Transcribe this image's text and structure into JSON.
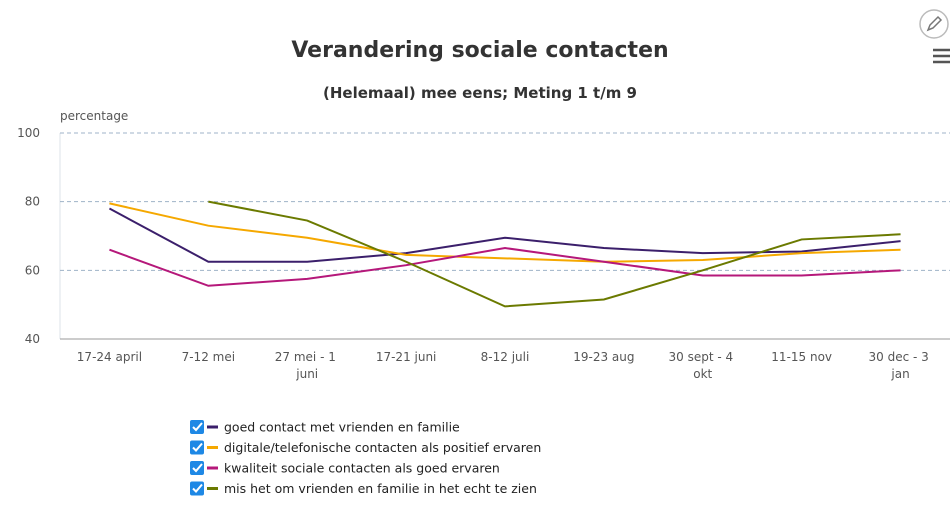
{
  "chart_data": {
    "type": "line",
    "title": "Verandering sociale contacten",
    "subtitle": "(Helemaal) mee eens; Meting 1 t/m 9",
    "y_label": "percentage",
    "categories": [
      "17-24 april",
      "7-12 mei",
      "27 mei - 1 juni",
      "17-21 juni",
      "8-12 juli",
      "19-23 aug",
      "30 sept - 4 okt",
      "11-15 nov",
      "30 dec - 3 jan"
    ],
    "series": [
      {
        "name": "goed contact met vrienden en familie",
        "color": "#3b1f6b",
        "values": [
          78,
          62.5,
          62.5,
          65,
          69.5,
          66.5,
          65,
          65.5,
          68.5
        ]
      },
      {
        "name": "digitale/telefonische contacten als positief ervaren",
        "color": "#f5a800",
        "values": [
          79.5,
          73,
          69.5,
          64.5,
          63.5,
          62.5,
          63,
          65,
          66
        ]
      },
      {
        "name": "kwaliteit sociale contacten als goed ervaren",
        "color": "#b5187a",
        "values": [
          66,
          55.5,
          57.5,
          61.5,
          66.5,
          62.5,
          58.5,
          58.5,
          60
        ]
      },
      {
        "name": "mis het om vrienden en familie in het echt te zien",
        "color": "#6b7a00",
        "values": [
          null,
          80,
          74.5,
          62.5,
          49.5,
          51.5,
          60,
          69,
          70.5
        ]
      }
    ],
    "ylim": [
      40,
      100
    ],
    "yticks": [
      40,
      60,
      80,
      100
    ],
    "grid": true
  }
}
